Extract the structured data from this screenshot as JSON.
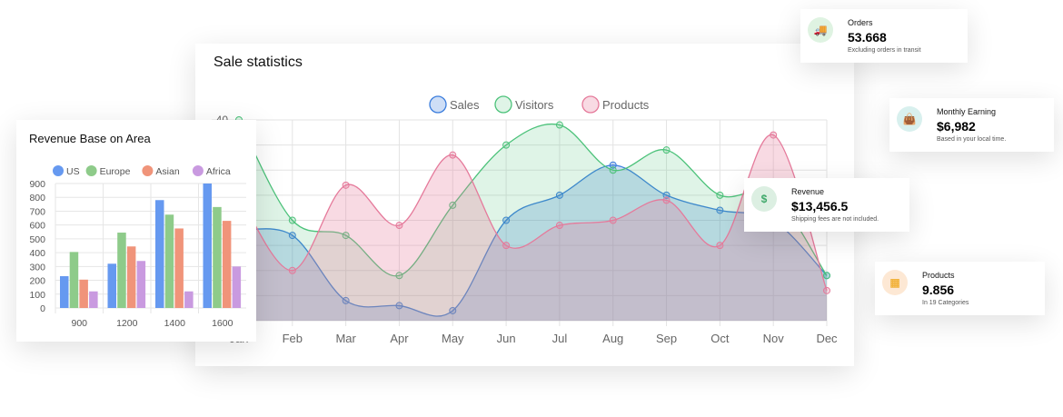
{
  "colors": {
    "sales": "#3b7ddd",
    "visitors": "#4cc27a",
    "products": "#e57a9b",
    "us": "#6699f0",
    "europe": "#8ecb8a",
    "asian": "#f0947a",
    "africa": "#c99ae0"
  },
  "chart_data": [
    {
      "type": "area",
      "title": "Sale statistics",
      "categories": [
        "Jan",
        "Feb",
        "Mar",
        "Apr",
        "May",
        "Jun",
        "Jul",
        "Aug",
        "Sep",
        "Oct",
        "Nov",
        "Dec"
      ],
      "ylim": [
        0,
        40
      ],
      "yticks": [
        40
      ],
      "grid": true,
      "legend": "top",
      "series": [
        {
          "name": "Sales",
          "values": [
            18,
            17,
            4,
            3,
            2,
            20,
            25,
            31,
            25,
            22,
            20,
            9
          ]
        },
        {
          "name": "Visitors",
          "values": [
            40,
            20,
            17,
            9,
            23,
            35,
            39,
            30,
            34,
            25,
            25,
            9
          ]
        },
        {
          "name": "Products",
          "values": [
            25,
            10,
            27,
            19,
            33,
            15,
            19,
            20,
            24,
            15,
            37,
            6
          ]
        }
      ]
    },
    {
      "type": "bar",
      "title": "Revenue Base on Area",
      "categories": [
        "900",
        "1200",
        "1400",
        "1600"
      ],
      "ylim": [
        0,
        900
      ],
      "yticks": [
        "0",
        "100",
        "200",
        "300",
        "400",
        "500",
        "600",
        "700",
        "800",
        "900"
      ],
      "grid": true,
      "legend": "top",
      "series": [
        {
          "name": "US",
          "values": [
            230,
            320,
            780,
            900
          ]
        },
        {
          "name": "Europe",
          "values": [
            405,
            545,
            675,
            730
          ]
        },
        {
          "name": "Asian",
          "values": [
            205,
            445,
            575,
            630
          ]
        },
        {
          "name": "Africa",
          "values": [
            120,
            340,
            120,
            300
          ]
        }
      ]
    }
  ],
  "stats": [
    {
      "label": "Orders",
      "value": "53.668",
      "sub": "Excluding orders in transit",
      "icon": "truck-icon",
      "glyph": "🚚",
      "bg": "#dff3e2",
      "fg": "#4caf50"
    },
    {
      "label": "Monthly Earning",
      "value": "$6,982",
      "sub": "Based in your local time.",
      "icon": "shopping-bag-icon",
      "glyph": "👜",
      "bg": "#d8f0ee",
      "fg": "#2a9bb0"
    },
    {
      "label": "Revenue",
      "value": "$13,456.5",
      "sub": "Shipping fees are not included.",
      "icon": "dollar-icon",
      "glyph": "$",
      "bg": "#dcefe2",
      "fg": "#3fa86a"
    },
    {
      "label": "Products",
      "value": "9.856",
      "sub": "In 19 Categories",
      "icon": "qr-code-icon",
      "glyph": "▦",
      "bg": "#fde8d4",
      "fg": "#f2b33d"
    }
  ]
}
